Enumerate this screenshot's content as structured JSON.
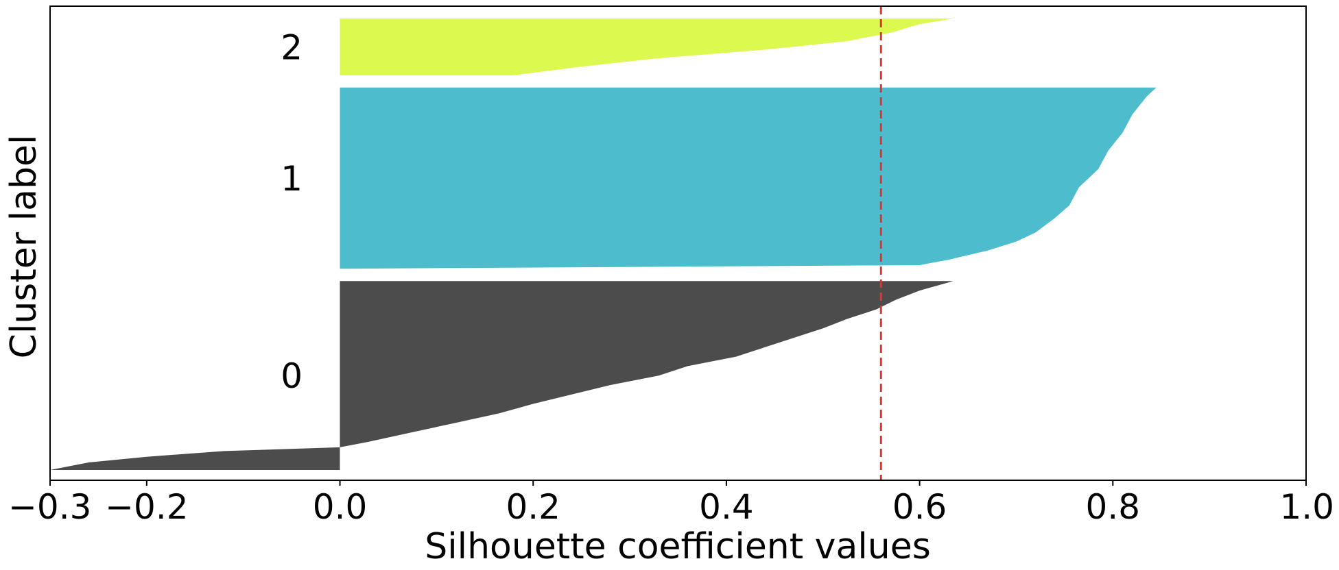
{
  "chart_data": {
    "type": "area",
    "title": "",
    "xlabel": "Silhouette coefficient values",
    "ylabel": "Cluster label",
    "xlim": [
      -0.3,
      1.0
    ],
    "xticks": [
      "−0.3",
      "−0.2",
      "0.0",
      "0.2",
      "0.4",
      "0.6",
      "0.8",
      "1.0"
    ],
    "xtick_values": [
      -0.3,
      -0.2,
      0.0,
      0.2,
      0.4,
      0.6,
      0.8,
      1.0
    ],
    "grid": false,
    "avg_silhouette": 0.56,
    "avg_line_color": "#e8312d",
    "clusters": [
      {
        "label": "0",
        "color": "#4c4c4c",
        "size": 100,
        "profile": [
          [
            0,
            0.635
          ],
          [
            0.05,
            0.6
          ],
          [
            0.1,
            0.575
          ],
          [
            0.15,
            0.555
          ],
          [
            0.2,
            0.525
          ],
          [
            0.25,
            0.5
          ],
          [
            0.3,
            0.47
          ],
          [
            0.35,
            0.44
          ],
          [
            0.4,
            0.41
          ],
          [
            0.45,
            0.36
          ],
          [
            0.5,
            0.33
          ],
          [
            0.55,
            0.28
          ],
          [
            0.6,
            0.24
          ],
          [
            0.65,
            0.2
          ],
          [
            0.7,
            0.165
          ],
          [
            0.75,
            0.12
          ],
          [
            0.8,
            0.075
          ],
          [
            0.85,
            0.03
          ],
          [
            0.88,
            0.0
          ],
          [
            0.9,
            -0.12
          ],
          [
            0.93,
            -0.2
          ],
          [
            0.96,
            -0.26
          ],
          [
            1.0,
            -0.3
          ]
        ]
      },
      {
        "label": "1",
        "color": "#4dbccc",
        "size": 96,
        "profile": [
          [
            0,
            0.845
          ],
          [
            0.05,
            0.835
          ],
          [
            0.15,
            0.82
          ],
          [
            0.25,
            0.81
          ],
          [
            0.35,
            0.795
          ],
          [
            0.45,
            0.785
          ],
          [
            0.55,
            0.765
          ],
          [
            0.65,
            0.755
          ],
          [
            0.72,
            0.74
          ],
          [
            0.8,
            0.72
          ],
          [
            0.85,
            0.7
          ],
          [
            0.9,
            0.67
          ],
          [
            0.95,
            0.63
          ],
          [
            0.98,
            0.6
          ],
          [
            1.0,
            0.0
          ]
        ]
      },
      {
        "label": "2",
        "color": "#dcf950",
        "size": 30,
        "profile": [
          [
            0,
            0.635
          ],
          [
            0.1,
            0.6
          ],
          [
            0.25,
            0.57
          ],
          [
            0.4,
            0.525
          ],
          [
            0.55,
            0.44
          ],
          [
            0.7,
            0.33
          ],
          [
            0.85,
            0.25
          ],
          [
            1.0,
            0.18
          ]
        ]
      }
    ]
  }
}
